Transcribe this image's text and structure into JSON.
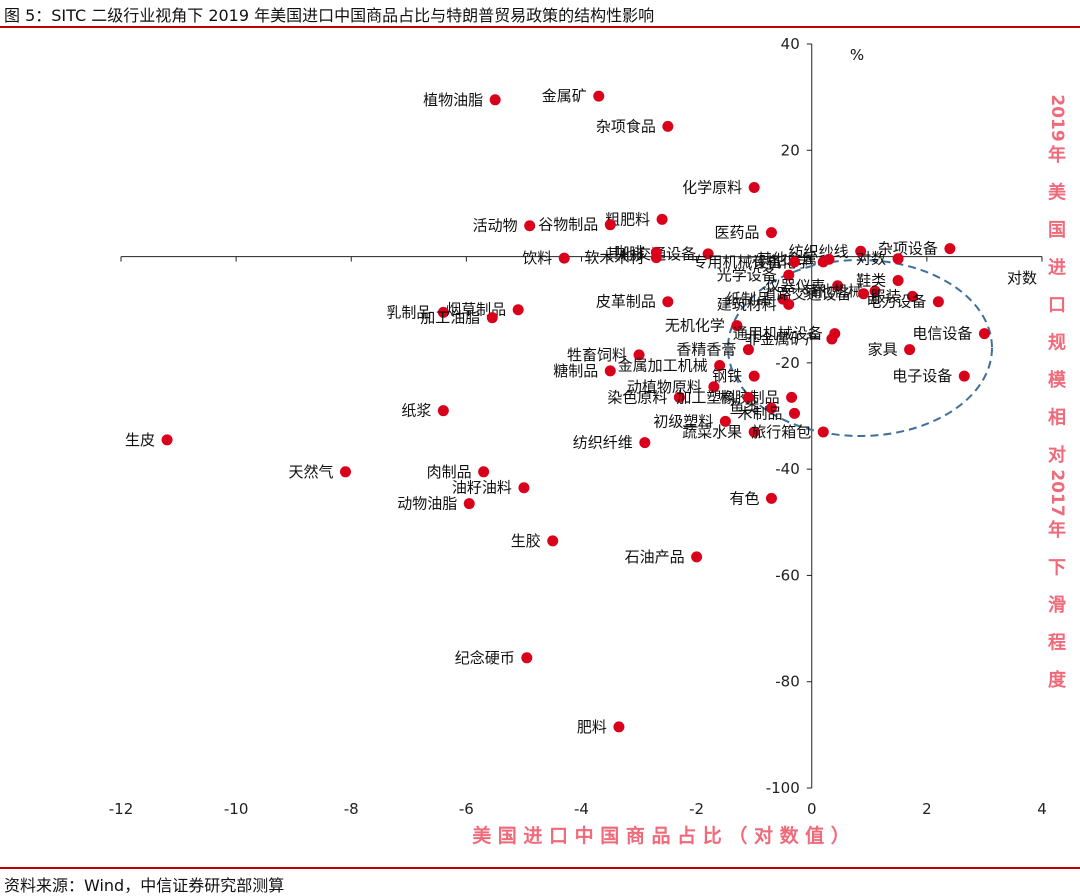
{
  "figure_title": "图 5：SITC 二级行业视角下 2019 年美国进口中国商品占比与特朗普贸易政策的结构性影响",
  "source_note": "资料来源：Wind，中信证券研究部测算",
  "colors": {
    "accent": "#c00000",
    "point": "#d9001b",
    "axis_label": "#f06a7a",
    "ellipse": "#3f6f99"
  },
  "chart_data": {
    "type": "scatter",
    "xlabel": "美 国 进 口 中 国 商 品 占 比 （ 对 数 值 ）",
    "ylabel": "2019年美国进口规模相对2017年下滑程度",
    "x_axis_note": "对数",
    "y_unit": "%",
    "xlim": [
      -12,
      4
    ],
    "ylim": [
      -100,
      40
    ],
    "xticks": [
      "-12",
      "-10",
      "-8",
      "-6",
      "-4",
      "-2",
      "0",
      "2",
      "4"
    ],
    "yticks": [
      "40",
      "20",
      "-20",
      "-40",
      "-60",
      "-80",
      "-100"
    ],
    "grid": false,
    "points": [
      {
        "label": "植物油脂",
        "x": -5.5,
        "y": 29.5
      },
      {
        "label": "金属矿",
        "x": -3.7,
        "y": 30.2
      },
      {
        "label": "杂项食品",
        "x": -2.5,
        "y": 24.5
      },
      {
        "label": "化学原料",
        "x": -1.0,
        "y": 13.0
      },
      {
        "label": "医药品",
        "x": -0.7,
        "y": 4.5
      },
      {
        "label": "粗肥料",
        "x": -2.6,
        "y": 7.0
      },
      {
        "label": "活动物",
        "x": -4.9,
        "y": 5.8
      },
      {
        "label": "谷物制品",
        "x": -3.5,
        "y": 6.0
      },
      {
        "label": "其他交通设备",
        "x": -1.8,
        "y": 0.5
      },
      {
        "label": "咖啡",
        "x": -2.7,
        "y": 0.8
      },
      {
        "label": "饮料",
        "x": -4.3,
        "y": -0.3
      },
      {
        "label": "软木木材",
        "x": -2.7,
        "y": -0.2
      },
      {
        "label": "有机化学",
        "x": 0.2,
        "y": -1.0
      },
      {
        "label": "纺织纱线",
        "x": 0.85,
        "y": 1.0
      },
      {
        "label": "其他金属",
        "x": 0.3,
        "y": -0.5
      },
      {
        "label": "杂项设备",
        "x": 2.4,
        "y": 1.5
      },
      {
        "label": "专用机械设备",
        "x": -0.3,
        "y": -1.0
      },
      {
        "label": "光学设备",
        "x": -0.4,
        "y": -3.5
      },
      {
        "label": "仪器仪表",
        "x": 0.45,
        "y": -5.5
      },
      {
        "label": "其他机械",
        "x": 1.1,
        "y": -6.5
      },
      {
        "label": "服装",
        "x": 1.75,
        "y": -7.5
      },
      {
        "label": "对数",
        "x": 1.5,
        "y": -0.4
      },
      {
        "label": "鞋类",
        "x": 1.5,
        "y": -4.5
      },
      {
        "label": "电力设备",
        "x": 2.2,
        "y": -8.5
      },
      {
        "label": "皮革制品",
        "x": -2.5,
        "y": -8.5
      },
      {
        "label": "纸制品",
        "x": -0.5,
        "y": -8.0
      },
      {
        "label": "道路交通设备",
        "x": 0.9,
        "y": -7.0
      },
      {
        "label": "建筑材料",
        "x": -0.4,
        "y": -9.0
      },
      {
        "label": "电信设备",
        "x": 3.0,
        "y": -14.5
      },
      {
        "label": "无机化学",
        "x": -1.3,
        "y": -13.0
      },
      {
        "label": "通用机械设备",
        "x": 0.4,
        "y": -14.5
      },
      {
        "label": "家具",
        "x": 1.7,
        "y": -17.5
      },
      {
        "label": "香精香膏",
        "x": -1.1,
        "y": -17.5
      },
      {
        "label": "非金属矿产",
        "x": 0.35,
        "y": -15.5
      },
      {
        "label": "牲畜饲料",
        "x": -3.0,
        "y": -18.5
      },
      {
        "label": "金属加工机械",
        "x": -1.6,
        "y": -20.5
      },
      {
        "label": "糖制品",
        "x": -3.5,
        "y": -21.5
      },
      {
        "label": "钢铁",
        "x": -1.0,
        "y": -22.5
      },
      {
        "label": "电子设备",
        "x": 2.65,
        "y": -22.5
      },
      {
        "label": "动植物原料",
        "x": -1.7,
        "y": -24.5
      },
      {
        "label": "橡胶制品",
        "x": -0.35,
        "y": -26.5
      },
      {
        "label": "染色原料",
        "x": -2.3,
        "y": -26.5
      },
      {
        "label": "加工塑料",
        "x": -1.1,
        "y": -26.5
      },
      {
        "label": "鱼类",
        "x": -0.7,
        "y": -28.5
      },
      {
        "label": "木制品",
        "x": -0.3,
        "y": -29.5
      },
      {
        "label": "初级塑料",
        "x": -1.5,
        "y": -31.0
      },
      {
        "label": "蔬菜水果",
        "x": -1.0,
        "y": -33.0
      },
      {
        "label": "旅行箱包",
        "x": 0.2,
        "y": -33.0
      },
      {
        "label": "纺织纤维",
        "x": -2.9,
        "y": -35.0
      },
      {
        "label": "乳制品",
        "x": -6.4,
        "y": -10.5
      },
      {
        "label": "烟草制品",
        "x": -5.1,
        "y": -10.0
      },
      {
        "label": "加工油脂",
        "x": -5.55,
        "y": -11.5
      },
      {
        "label": "纸浆",
        "x": -6.4,
        "y": -29.0
      },
      {
        "label": "生皮",
        "x": -11.2,
        "y": -34.5
      },
      {
        "label": "天然气",
        "x": -8.1,
        "y": -40.5
      },
      {
        "label": "肉制品",
        "x": -5.7,
        "y": -40.5
      },
      {
        "label": "油籽油料",
        "x": -5.0,
        "y": -43.5
      },
      {
        "label": "动物油脂",
        "x": -5.95,
        "y": -46.5
      },
      {
        "label": "有色",
        "x": -0.7,
        "y": -45.5
      },
      {
        "label": "生胶",
        "x": -4.5,
        "y": -53.5
      },
      {
        "label": "石油产品",
        "x": -2.0,
        "y": -56.5
      },
      {
        "label": "纪念硬币",
        "x": -4.95,
        "y": -75.5
      },
      {
        "label": "肥料",
        "x": -3.35,
        "y": -88.5
      }
    ]
  }
}
